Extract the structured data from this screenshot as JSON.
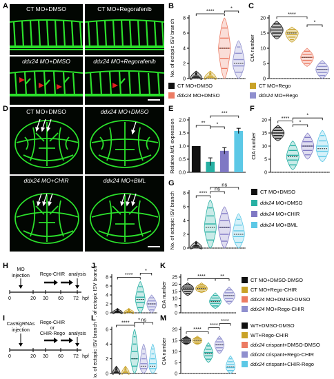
{
  "panels": {
    "A": "A",
    "B": "B",
    "C": "C",
    "D": "D",
    "E": "E",
    "F": "F",
    "G": "G",
    "H": "H",
    "I": "I",
    "J": "J",
    "K": "K",
    "L": "L",
    "M": "M"
  },
  "micro_A": [
    "CT MO+DMSO",
    "CT MO+Regorafenib",
    "ddx24 MO+DMSO",
    "ddx24 MO+Regorafenib"
  ],
  "micro_D": [
    "CT MO+DMSO",
    "ddx24 MO+DMSO",
    "ddx24 MO+CHIR",
    "ddx24 MO+BML"
  ],
  "colors": {
    "black": "#111111",
    "gold": "#c9a227",
    "salmon": "#ec7b63",
    "lavender": "#8f8fce",
    "teal": "#27b0a3",
    "purple": "#7f78c4",
    "cyan": "#5cc8e6",
    "green": "#2be02b"
  },
  "legend1": [
    {
      "label": "CT MO+DMSO",
      "color": "#111111"
    },
    {
      "label": "CT MO+Rego",
      "color": "#c9a227"
    },
    {
      "label": "ddx24 MO+DMSO",
      "color": "#ec7b63"
    },
    {
      "label": "ddx24 MO+Rego",
      "color": "#8f8fce"
    }
  ],
  "legend2": [
    {
      "label": "CT MO+DMSO",
      "color": "#111111"
    },
    {
      "label": "ddx24 MO+DMSO",
      "color": "#27b0a3"
    },
    {
      "label": "ddx24 MO+CHIR",
      "color": "#7f78c4"
    },
    {
      "label": "ddx24 MO+BML",
      "color": "#5cc8e6"
    }
  ],
  "legend3": [
    {
      "label": "CT MO+DMSO-DMSO",
      "color": "#111111"
    },
    {
      "label": "CT MO+Rego-CHIR",
      "color": "#c9a227"
    },
    {
      "label": "ddx24 MO+DMSO-DMSO",
      "color": "#ec7b63"
    },
    {
      "label": "ddx24 MO+Rego-CHIR",
      "color": "#8f8fce"
    }
  ],
  "legend4": [
    {
      "label": "WT+DMSO-DMSO",
      "color": "#111111"
    },
    {
      "label": "WT+Rego-CHIR",
      "color": "#c9a227"
    },
    {
      "label": "ddx24 crispant+DMSO-DMSO",
      "color": "#ec7b63"
    },
    {
      "label": "ddx24 crispant+Rego-CHIR",
      "color": "#8f8fce"
    },
    {
      "label": "ddx24 crispant+CHIR-Rego",
      "color": "#5cc8e6"
    }
  ],
  "timeline_H": {
    "label1": "MO",
    "label2": "injection",
    "treat": "Rego-CHIR",
    "analysis": "analysis",
    "ticks": [
      "0",
      "20",
      "30",
      "60",
      "72"
    ],
    "unit": "hpf"
  },
  "timeline_I": {
    "label1": "Cas9/gRNAs",
    "label2": "injection",
    "treat1": "Rego-CHIR",
    "treat2": "or",
    "treat3": "CHIR-Rego",
    "analysis": "analysis",
    "ticks": [
      "0",
      "20",
      "30",
      "60",
      "72"
    ],
    "unit": "hpf"
  },
  "chart_data": [
    {
      "id": "B",
      "type": "violin",
      "ylabel": "No. of ectopic ISV branch",
      "ylim": [
        0,
        8
      ],
      "yticks": [
        0,
        2,
        4,
        6,
        8
      ],
      "series": [
        {
          "color": "#111111",
          "median": 0,
          "max": 1
        },
        {
          "color": "#c9a227",
          "median": 0,
          "max": 1
        },
        {
          "color": "#ec7b63",
          "median": 4,
          "max": 8
        },
        {
          "color": "#8f8fce",
          "median": 2,
          "max": 5
        }
      ],
      "sig": [
        {
          "a": 0,
          "b": 2,
          "label": "****"
        },
        {
          "a": 2,
          "b": 3,
          "label": "*"
        }
      ]
    },
    {
      "id": "C",
      "type": "violin",
      "ylabel": "CtA number",
      "ylim": [
        0,
        20
      ],
      "yticks": [
        0,
        5,
        10,
        15,
        20
      ],
      "series": [
        {
          "color": "#111111",
          "median": 16,
          "max": 19,
          "min": 13
        },
        {
          "color": "#c9a227",
          "median": 15,
          "max": 17,
          "min": 12
        },
        {
          "color": "#ec7b63",
          "median": 7,
          "max": 10,
          "min": 4
        },
        {
          "color": "#8f8fce",
          "median": 3,
          "max": 6,
          "min": 0
        }
      ],
      "sig": [
        {
          "a": 0,
          "b": 2,
          "label": "****"
        },
        {
          "a": 2,
          "b": 3,
          "label": "*"
        }
      ]
    },
    {
      "id": "E",
      "type": "bar",
      "ylabel": "Relative lef1 expression",
      "ylim": [
        0,
        2.0
      ],
      "yticks": [
        0.0,
        0.5,
        1.0,
        1.5,
        2.0
      ],
      "values": [
        1.0,
        0.4,
        0.82,
        1.58
      ],
      "errors": [
        0.0,
        0.15,
        0.12,
        0.1
      ],
      "colors": [
        "#111111",
        "#27b0a3",
        "#7f78c4",
        "#5cc8e6"
      ],
      "sig": [
        {
          "a": 0,
          "b": 1,
          "label": "**"
        },
        {
          "a": 1,
          "b": 2,
          "label": "*"
        },
        {
          "a": 1,
          "b": 3,
          "label": "***"
        }
      ]
    },
    {
      "id": "F",
      "type": "violin",
      "ylabel": "CtA number",
      "ylim": [
        0,
        20
      ],
      "yticks": [
        0,
        5,
        10,
        15,
        20
      ],
      "series": [
        {
          "color": "#111111",
          "median": 15,
          "max": 18,
          "min": 12
        },
        {
          "color": "#27b0a3",
          "median": 6,
          "max": 12,
          "min": 1
        },
        {
          "color": "#7f78c4",
          "median": 10,
          "max": 15,
          "min": 5
        },
        {
          "color": "#5cc8e6",
          "median": 9,
          "max": 16,
          "min": 4
        }
      ],
      "sig": [
        {
          "a": 0,
          "b": 1,
          "label": "****"
        },
        {
          "a": 1,
          "b": 2,
          "label": "*"
        },
        {
          "a": 1,
          "b": 3,
          "label": "*"
        }
      ]
    },
    {
      "id": "G",
      "type": "violin",
      "ylabel": "No. of ectopic ISV branch",
      "ylim": [
        0,
        8
      ],
      "yticks": [
        0,
        2,
        4,
        6,
        8
      ],
      "series": [
        {
          "color": "#111111",
          "median": 0,
          "max": 1
        },
        {
          "color": "#27b0a3",
          "median": 3,
          "max": 7
        },
        {
          "color": "#7f78c4",
          "median": 3,
          "max": 6
        },
        {
          "color": "#5cc8e6",
          "median": 2,
          "max": 5
        }
      ],
      "sig": [
        {
          "a": 0,
          "b": 1,
          "label": "****"
        },
        {
          "a": 1,
          "b": 2,
          "label": "ns"
        },
        {
          "a": 1,
          "b": 3,
          "label": "ns"
        }
      ]
    },
    {
      "id": "J",
      "type": "violin",
      "ylabel": "No. of ectopic ISV branch",
      "ylim": [
        0,
        8
      ],
      "yticks": [
        0,
        2,
        4,
        6,
        8
      ],
      "series": [
        {
          "color": "#111111",
          "median": 0,
          "max": 1
        },
        {
          "color": "#c9a227",
          "median": 0,
          "max": 1
        },
        {
          "color": "#27b0a3",
          "median": 3,
          "max": 7
        },
        {
          "color": "#8f8fce",
          "median": 2,
          "max": 4
        }
      ],
      "sig": [
        {
          "a": 0,
          "b": 2,
          "label": "****"
        },
        {
          "a": 2,
          "b": 3,
          "label": "*"
        }
      ]
    },
    {
      "id": "K",
      "type": "violin",
      "ylabel": "CtA number",
      "ylim": [
        0,
        25
      ],
      "yticks": [
        0,
        5,
        10,
        15,
        20,
        25
      ],
      "series": [
        {
          "color": "#111111",
          "median": 17,
          "max": 21,
          "min": 12
        },
        {
          "color": "#c9a227",
          "median": 17,
          "max": 21,
          "min": 14
        },
        {
          "color": "#27b0a3",
          "median": 8,
          "max": 14,
          "min": 3
        },
        {
          "color": "#8f8fce",
          "median": 12,
          "max": 18,
          "min": 6
        }
      ],
      "sig": [
        {
          "a": 0,
          "b": 2,
          "label": "****"
        },
        {
          "a": 2,
          "b": 3,
          "label": "**"
        }
      ]
    },
    {
      "id": "L",
      "type": "violin",
      "ylabel": "No. of ectopic ISV branch",
      "ylim": [
        0,
        6
      ],
      "yticks": [
        0,
        2,
        4,
        6
      ],
      "series": [
        {
          "color": "#111111",
          "median": 0,
          "max": 1
        },
        {
          "color": "#c9a227",
          "median": 0,
          "max": 1
        },
        {
          "color": "#27b0a3",
          "median": 2,
          "max": 6
        },
        {
          "color": "#8f8fce",
          "median": 1,
          "max": 4
        },
        {
          "color": "#5cc8e6",
          "median": 1,
          "max": 4
        }
      ],
      "sig": [
        {
          "a": 0,
          "b": 2,
          "label": "****"
        },
        {
          "a": 2,
          "b": 3,
          "label": "*"
        },
        {
          "a": 2,
          "b": 4,
          "label": "ns"
        }
      ]
    },
    {
      "id": "M",
      "type": "violin",
      "ylabel": "CtA number",
      "ylim": [
        0,
        20
      ],
      "yticks": [
        0,
        5,
        10,
        15,
        20
      ],
      "series": [
        {
          "color": "#111111",
          "median": 15,
          "max": 17,
          "min": 13
        },
        {
          "color": "#c9a227",
          "median": 15,
          "max": 17,
          "min": 13
        },
        {
          "color": "#27b0a3",
          "median": 9,
          "max": 14,
          "min": 5
        },
        {
          "color": "#8f8fce",
          "median": 13,
          "max": 17,
          "min": 9
        },
        {
          "color": "#5cc8e6",
          "median": 3,
          "max": 8,
          "min": 0
        }
      ],
      "sig": [
        {
          "a": 0,
          "b": 2,
          "label": "****"
        },
        {
          "a": 2,
          "b": 3,
          "label": "****"
        },
        {
          "a": 3,
          "b": 4,
          "label": "****"
        }
      ]
    }
  ]
}
